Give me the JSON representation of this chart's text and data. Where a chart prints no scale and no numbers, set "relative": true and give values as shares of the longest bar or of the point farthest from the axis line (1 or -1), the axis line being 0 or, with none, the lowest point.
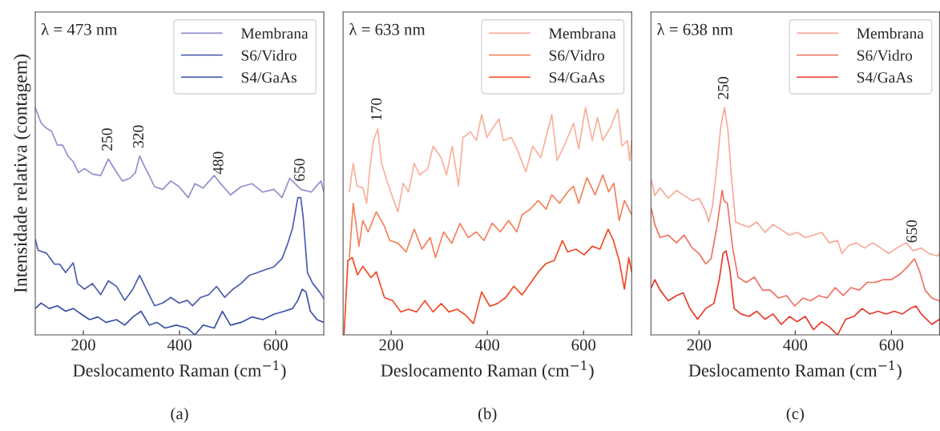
{
  "chart_data": [
    {
      "type": "line",
      "relative": true,
      "legend": "top right",
      "xlabel": "Deslocamento Raman (cm$^{−1}$)",
      "ylabel": "Intensidade relativa (contagem)",
      "xlim": [
        100,
        700
      ],
      "xticks": [
        200,
        400,
        600
      ],
      "annotations": [
        "λ = 473 nm",
        "(a)",
        {
          "text": "250",
          "x": 252,
          "y": 0.774
        },
        {
          "text": "320",
          "x": 317,
          "y": 0.787
        },
        {
          "text": "480",
          "x": 483,
          "y": 0.671
        },
        {
          "text": "650",
          "x": 652,
          "y": 0.64
        }
      ],
      "series": [
        {
          "name": "Membrana",
          "color": "#8f8fd0",
          "x": [
            100,
            112,
            123,
            134,
            146,
            157,
            168,
            179,
            190,
            202,
            219,
            236,
            252,
            264,
            281,
            297,
            308,
            317,
            325,
            337,
            348,
            365,
            382,
            399,
            418,
            432,
            449,
            472,
            483,
            506,
            528,
            551,
            573,
            596,
            613,
            629,
            652,
            674,
            694,
            700
          ],
          "values": [
            1.0,
            0.933,
            0.909,
            0.896,
            0.835,
            0.835,
            0.787,
            0.762,
            0.713,
            0.732,
            0.707,
            0.701,
            0.774,
            0.732,
            0.677,
            0.689,
            0.713,
            0.787,
            0.75,
            0.701,
            0.652,
            0.64,
            0.677,
            0.652,
            0.604,
            0.665,
            0.646,
            0.701,
            0.671,
            0.616,
            0.652,
            0.665,
            0.628,
            0.64,
            0.604,
            0.689,
            0.64,
            0.628,
            0.677,
            0.628
          ]
        },
        {
          "name": "S6/Vidro",
          "color": "#4a5ab0",
          "x": [
            100,
            106,
            123,
            140,
            151,
            163,
            179,
            188,
            202,
            219,
            236,
            252,
            269,
            286,
            303,
            317,
            331,
            348,
            365,
            382,
            399,
            416,
            427,
            444,
            461,
            477,
            494,
            511,
            528,
            545,
            562,
            579,
            596,
            613,
            624,
            635,
            646,
            652,
            657,
            666,
            677,
            691,
            700
          ],
          "values": [
            0.421,
            0.372,
            0.36,
            0.311,
            0.311,
            0.274,
            0.317,
            0.226,
            0.201,
            0.226,
            0.177,
            0.238,
            0.213,
            0.152,
            0.201,
            0.262,
            0.201,
            0.128,
            0.14,
            0.165,
            0.14,
            0.152,
            0.128,
            0.165,
            0.177,
            0.213,
            0.165,
            0.201,
            0.226,
            0.262,
            0.274,
            0.287,
            0.299,
            0.335,
            0.396,
            0.47,
            0.604,
            0.604,
            0.518,
            0.274,
            0.226,
            0.189,
            0.159
          ]
        },
        {
          "name": "S4/GaAs",
          "color": "#3a4ea8",
          "x": [
            100,
            112,
            129,
            146,
            163,
            179,
            196,
            213,
            230,
            247,
            269,
            286,
            303,
            320,
            337,
            353,
            370,
            393,
            416,
            432,
            449,
            472,
            489,
            506,
            528,
            551,
            573,
            596,
            618,
            635,
            646,
            655,
            663,
            672,
            686,
            700
          ],
          "values": [
            0.116,
            0.14,
            0.116,
            0.128,
            0.104,
            0.116,
            0.091,
            0.067,
            0.079,
            0.055,
            0.067,
            0.043,
            0.079,
            0.104,
            0.043,
            0.055,
            0.03,
            0.043,
            0.03,
            0.0,
            0.043,
            0.03,
            0.104,
            0.043,
            0.055,
            0.079,
            0.067,
            0.091,
            0.104,
            0.116,
            0.152,
            0.201,
            0.189,
            0.104,
            0.067,
            0.055
          ]
        }
      ]
    },
    {
      "type": "line",
      "relative": true,
      "legend": "top right",
      "xlabel": "Deslocamento Raman (cm$^{−1}$)",
      "xlim": [
        100,
        700
      ],
      "xticks": [
        200,
        400,
        600
      ],
      "annotations": [
        "λ = 633 nm",
        "(b)",
        {
          "text": "170",
          "x": 172,
          "y": 0.906
        }
      ],
      "series": [
        {
          "name": "Membrana",
          "color": "#f9b09a",
          "x": [
            113,
            121,
            129,
            141,
            149,
            155,
            163,
            172,
            180,
            191,
            203,
            214,
            225,
            236,
            248,
            259,
            276,
            287,
            304,
            315,
            327,
            340,
            349,
            365,
            377,
            388,
            399,
            410,
            424,
            433,
            450,
            464,
            480,
            494,
            511,
            534,
            545,
            562,
            579,
            590,
            604,
            618,
            629,
            640,
            657,
            671,
            680,
            691,
            696,
            700
          ],
          "values": [
            0.629,
            0.755,
            0.654,
            0.648,
            0.579,
            0.717,
            0.855,
            0.906,
            0.755,
            0.679,
            0.604,
            0.541,
            0.667,
            0.629,
            0.755,
            0.704,
            0.73,
            0.83,
            0.78,
            0.704,
            0.83,
            0.654,
            0.868,
            0.893,
            0.855,
            0.969,
            0.868,
            0.906,
            0.95,
            0.855,
            0.868,
            0.805,
            0.717,
            0.83,
            0.78,
            0.969,
            0.767,
            0.843,
            0.931,
            0.818,
            1.0,
            0.855,
            0.956,
            0.855,
            0.918,
            0.994,
            0.83,
            0.855,
            0.767,
            0.855
          ]
        },
        {
          "name": "S6/Vidro",
          "color": "#f4805a",
          "x": [
            113,
            121,
            133,
            141,
            152,
            169,
            186,
            197,
            214,
            231,
            248,
            264,
            281,
            292,
            309,
            326,
            343,
            360,
            377,
            393,
            410,
            427,
            444,
            461,
            472,
            489,
            506,
            522,
            534,
            550,
            567,
            579,
            590,
            607,
            624,
            640,
            652,
            663,
            674,
            685,
            700
          ],
          "values": [
            0.34,
            0.579,
            0.39,
            0.503,
            0.453,
            0.541,
            0.478,
            0.415,
            0.403,
            0.365,
            0.465,
            0.377,
            0.428,
            0.34,
            0.453,
            0.403,
            0.491,
            0.428,
            0.453,
            0.415,
            0.491,
            0.453,
            0.503,
            0.453,
            0.528,
            0.553,
            0.591,
            0.553,
            0.616,
            0.579,
            0.629,
            0.654,
            0.579,
            0.692,
            0.616,
            0.704,
            0.629,
            0.667,
            0.503,
            0.591,
            0.528
          ]
        },
        {
          "name": "S4/GaAs",
          "color": "#ef4a22",
          "x": [
            102,
            110,
            119,
            130,
            141,
            158,
            169,
            186,
            203,
            220,
            236,
            253,
            270,
            287,
            304,
            320,
            337,
            354,
            371,
            388,
            405,
            421,
            438,
            455,
            472,
            489,
            506,
            522,
            539,
            556,
            567,
            584,
            601,
            618,
            634,
            651,
            662,
            674,
            685,
            694,
            700
          ],
          "values": [
            0.0,
            0.327,
            0.34,
            0.264,
            0.302,
            0.252,
            0.277,
            0.164,
            0.151,
            0.101,
            0.113,
            0.101,
            0.151,
            0.101,
            0.138,
            0.101,
            0.113,
            0.088,
            0.05,
            0.189,
            0.126,
            0.138,
            0.164,
            0.214,
            0.176,
            0.226,
            0.277,
            0.314,
            0.327,
            0.415,
            0.365,
            0.377,
            0.352,
            0.39,
            0.377,
            0.465,
            0.415,
            0.327,
            0.201,
            0.34,
            0.277
          ]
        }
      ]
    },
    {
      "type": "line",
      "relative": true,
      "legend": "top right",
      "xlabel": "Deslocamento Raman (cm$^{−1}$)",
      "xlim": [
        100,
        700
      ],
      "xticks": [
        200,
        400,
        600
      ],
      "annotations": [
        "λ = 638 nm",
        "(c)",
        {
          "text": "250",
          "x": 253,
          "y": 1.0
        },
        {
          "text": "650",
          "x": 645,
          "y": 0.37
        }
      ],
      "series": [
        {
          "name": "Membrana",
          "color": "#f7a898",
          "x": [
            101,
            108,
            119,
            136,
            153,
            169,
            186,
            200,
            214,
            220,
            228,
            237,
            245,
            253,
            260,
            267,
            276,
            287,
            304,
            320,
            337,
            354,
            371,
            388,
            404,
            421,
            438,
            455,
            471,
            488,
            497,
            511,
            527,
            544,
            561,
            578,
            595,
            611,
            631,
            645,
            662,
            678,
            695,
            700
          ],
          "values": [
            0.682,
            0.613,
            0.647,
            0.601,
            0.636,
            0.613,
            0.59,
            0.601,
            0.543,
            0.497,
            0.566,
            0.74,
            0.913,
            1.0,
            0.902,
            0.705,
            0.497,
            0.486,
            0.474,
            0.497,
            0.451,
            0.486,
            0.462,
            0.439,
            0.451,
            0.428,
            0.439,
            0.451,
            0.405,
            0.416,
            0.358,
            0.393,
            0.405,
            0.382,
            0.405,
            0.382,
            0.358,
            0.382,
            0.405,
            0.37,
            0.382,
            0.358,
            0.347,
            0.358
          ]
        },
        {
          "name": "S6/Vidro",
          "color": "#f07060",
          "x": [
            101,
            108,
            119,
            136,
            153,
            169,
            186,
            200,
            214,
            225,
            237,
            248,
            252,
            259,
            270,
            281,
            298,
            315,
            332,
            348,
            365,
            382,
            399,
            416,
            432,
            449,
            466,
            483,
            500,
            516,
            533,
            550,
            567,
            583,
            600,
            617,
            634,
            648,
            659,
            670,
            684,
            700
          ],
          "values": [
            0.555,
            0.486,
            0.428,
            0.439,
            0.405,
            0.439,
            0.382,
            0.358,
            0.312,
            0.335,
            0.474,
            0.636,
            0.59,
            0.578,
            0.382,
            0.254,
            0.231,
            0.254,
            0.197,
            0.197,
            0.162,
            0.173,
            0.127,
            0.162,
            0.15,
            0.173,
            0.162,
            0.208,
            0.173,
            0.208,
            0.197,
            0.231,
            0.231,
            0.243,
            0.243,
            0.266,
            0.301,
            0.335,
            0.277,
            0.197,
            0.162,
            0.15
          ]
        },
        {
          "name": "S4/GaAs",
          "color": "#e8382a",
          "x": [
            101,
            108,
            119,
            136,
            153,
            167,
            181,
            197,
            214,
            231,
            242,
            250,
            256,
            264,
            273,
            287,
            304,
            320,
            337,
            354,
            371,
            388,
            404,
            421,
            438,
            455,
            471,
            488,
            505,
            522,
            539,
            555,
            572,
            589,
            606,
            623,
            639,
            651,
            662,
            673,
            684,
            700
          ],
          "values": [
            0.208,
            0.243,
            0.197,
            0.15,
            0.173,
            0.185,
            0.116,
            0.069,
            0.116,
            0.139,
            0.243,
            0.358,
            0.37,
            0.289,
            0.116,
            0.092,
            0.081,
            0.104,
            0.069,
            0.092,
            0.046,
            0.081,
            0.058,
            0.081,
            0.023,
            0.058,
            0.035,
            0.0,
            0.069,
            0.081,
            0.116,
            0.092,
            0.104,
            0.092,
            0.104,
            0.092,
            0.116,
            0.127,
            0.092,
            0.069,
            0.046,
            0.069
          ]
        }
      ]
    }
  ]
}
